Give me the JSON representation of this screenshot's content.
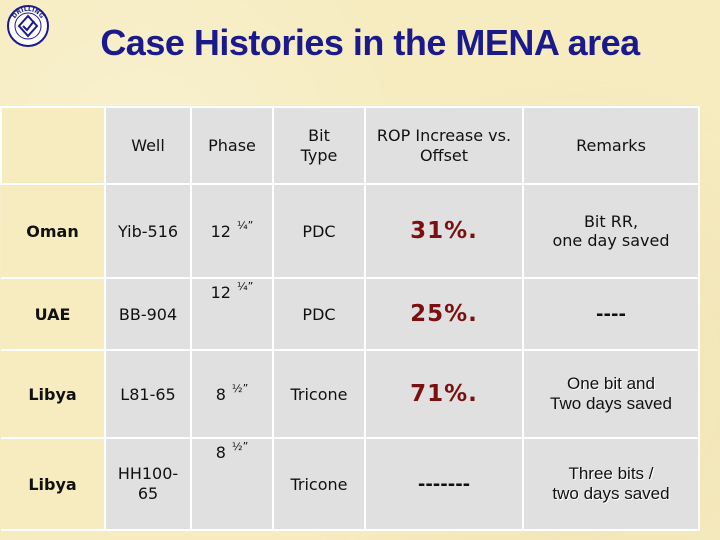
{
  "header": {
    "title": "Case Histories in the MENA area",
    "logo_text": "DRILLING",
    "logo_icon": "company-seal-icon"
  },
  "table": {
    "columns": [
      "Well",
      "Phase",
      "Bit Type",
      "ROP Increase vs. Offset",
      "Remarks"
    ],
    "rows": [
      {
        "country": "Oman",
        "well": "Yib-516",
        "phase_whole": "12",
        "phase_frac": "¼”",
        "bit_type": "PDC",
        "rop": "31%.",
        "remarks": [
          "Bit RR,",
          "one day saved"
        ]
      },
      {
        "country": "UAE",
        "well": "BB-904",
        "phase_whole": "12",
        "phase_frac": "¼”",
        "bit_type": "PDC",
        "rop": "25%.",
        "remarks": [
          "----"
        ]
      },
      {
        "country": "Libya",
        "well": "L81-65",
        "phase_whole": "8",
        "phase_frac": "½”",
        "bit_type": "Tricone",
        "rop": "71%.",
        "remarks": [
          "One bit  and",
          "Two days saved"
        ]
      },
      {
        "country": "Libya",
        "well": "HH100-65",
        "phase_whole": "8",
        "phase_frac": "½”",
        "bit_type": "Tricone",
        "rop": "-------",
        "remarks": [
          "Three bits /",
          "two days saved"
        ]
      }
    ]
  }
}
